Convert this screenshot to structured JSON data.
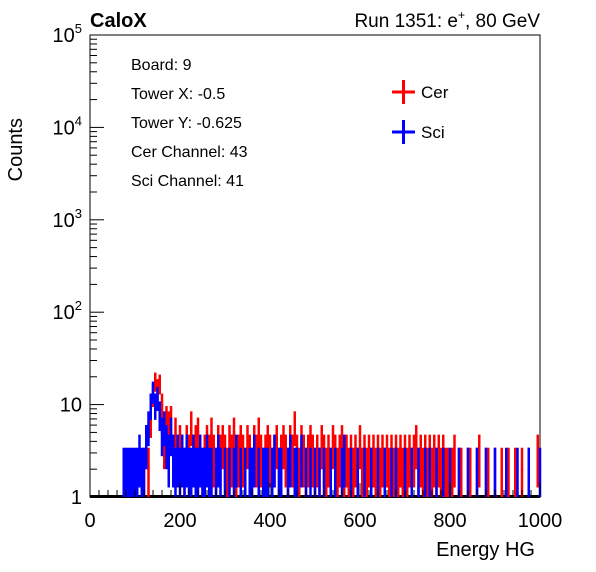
{
  "header": {
    "experiment": "CaloX",
    "run_label": "Run 1351: e",
    "run_sup": "+",
    "run_energy": ", 80 GeV"
  },
  "info": [
    "Board: 9",
    "Tower X: -0.5",
    "Tower Y: -0.625",
    "Cer Channel: 43",
    "Sci Channel: 41"
  ],
  "chart_data": {
    "type": "histogram",
    "xlabel": "Energy HG",
    "ylabel": "Counts",
    "xlim": [
      0,
      1000
    ],
    "ylim": [
      1,
      100000
    ],
    "ylog": true,
    "x_ticks": [
      "0",
      "200",
      "400",
      "600",
      "800",
      "1000"
    ],
    "y_ticks": [
      {
        "base": "1",
        "exp": ""
      },
      {
        "base": "10",
        "exp": ""
      },
      {
        "base": "10",
        "exp": "2"
      },
      {
        "base": "10",
        "exp": "3"
      },
      {
        "base": "10",
        "exp": "4"
      },
      {
        "base": "10",
        "exp": "5"
      }
    ],
    "legend_position": "top-right",
    "bin_width": 5,
    "series": [
      {
        "name": "Cer",
        "color": "#ff0000",
        "bins": [
          [
            120,
            2
          ],
          [
            125,
            4
          ],
          [
            130,
            2
          ],
          [
            135,
            7
          ],
          [
            140,
            13
          ],
          [
            145,
            18
          ],
          [
            150,
            15
          ],
          [
            155,
            17
          ],
          [
            160,
            10
          ],
          [
            165,
            4
          ],
          [
            170,
            7
          ],
          [
            175,
            6
          ],
          [
            180,
            7
          ],
          [
            185,
            3
          ],
          [
            190,
            5
          ],
          [
            195,
            3
          ],
          [
            200,
            4
          ],
          [
            205,
            3
          ],
          [
            210,
            2
          ],
          [
            215,
            4
          ],
          [
            220,
            3
          ],
          [
            225,
            6
          ],
          [
            230,
            3
          ],
          [
            235,
            4
          ],
          [
            240,
            5
          ],
          [
            245,
            3
          ],
          [
            250,
            2
          ],
          [
            255,
            3
          ],
          [
            260,
            4
          ],
          [
            265,
            3
          ],
          [
            270,
            5
          ],
          [
            275,
            3
          ],
          [
            280,
            2
          ],
          [
            285,
            4
          ],
          [
            290,
            3
          ],
          [
            295,
            4
          ],
          [
            300,
            3
          ],
          [
            305,
            2
          ],
          [
            310,
            4
          ],
          [
            315,
            3
          ],
          [
            320,
            5
          ],
          [
            325,
            2
          ],
          [
            330,
            3
          ],
          [
            335,
            4
          ],
          [
            340,
            3
          ],
          [
            345,
            2
          ],
          [
            350,
            4
          ],
          [
            355,
            3
          ],
          [
            360,
            2
          ],
          [
            365,
            4
          ],
          [
            370,
            3
          ],
          [
            375,
            5
          ],
          [
            380,
            3
          ],
          [
            385,
            2
          ],
          [
            390,
            3
          ],
          [
            395,
            4
          ],
          [
            400,
            3
          ],
          [
            405,
            2
          ],
          [
            410,
            3
          ],
          [
            415,
            4
          ],
          [
            420,
            2
          ],
          [
            425,
            3
          ],
          [
            430,
            4
          ],
          [
            435,
            3
          ],
          [
            440,
            2
          ],
          [
            445,
            4
          ],
          [
            450,
            3
          ],
          [
            455,
            6
          ],
          [
            460,
            3
          ],
          [
            465,
            2
          ],
          [
            470,
            4
          ],
          [
            475,
            3
          ],
          [
            480,
            2
          ],
          [
            485,
            3
          ],
          [
            490,
            4
          ],
          [
            495,
            3
          ],
          [
            500,
            2
          ],
          [
            505,
            3
          ],
          [
            510,
            2
          ],
          [
            515,
            4
          ],
          [
            520,
            3
          ],
          [
            525,
            2
          ],
          [
            530,
            3
          ],
          [
            535,
            2
          ],
          [
            540,
            4
          ],
          [
            545,
            3
          ],
          [
            550,
            2
          ],
          [
            555,
            3
          ],
          [
            560,
            4
          ],
          [
            565,
            2
          ],
          [
            570,
            3
          ],
          [
            575,
            2
          ],
          [
            580,
            3
          ],
          [
            585,
            2
          ],
          [
            590,
            3
          ],
          [
            595,
            2
          ],
          [
            600,
            4
          ],
          [
            605,
            2
          ],
          [
            610,
            3
          ],
          [
            615,
            2
          ],
          [
            620,
            3
          ],
          [
            625,
            2
          ],
          [
            630,
            3
          ],
          [
            635,
            2
          ],
          [
            640,
            3
          ],
          [
            645,
            2
          ],
          [
            650,
            3
          ],
          [
            655,
            2
          ],
          [
            660,
            3
          ],
          [
            665,
            2
          ],
          [
            670,
            3
          ],
          [
            675,
            2
          ],
          [
            680,
            3
          ],
          [
            685,
            2
          ],
          [
            690,
            3
          ],
          [
            695,
            2
          ],
          [
            700,
            3
          ],
          [
            705,
            2
          ],
          [
            710,
            3
          ],
          [
            715,
            2
          ],
          [
            720,
            3
          ],
          [
            725,
            4
          ],
          [
            730,
            2
          ],
          [
            735,
            3
          ],
          [
            740,
            2
          ],
          [
            745,
            3
          ],
          [
            750,
            2
          ],
          [
            755,
            3
          ],
          [
            760,
            2
          ],
          [
            765,
            3
          ],
          [
            770,
            2
          ],
          [
            775,
            3
          ],
          [
            780,
            2
          ],
          [
            785,
            3
          ],
          [
            790,
            2
          ],
          [
            795,
            2
          ],
          [
            805,
            2
          ],
          [
            810,
            3
          ],
          [
            820,
            2
          ],
          [
            825,
            2
          ],
          [
            840,
            2
          ],
          [
            845,
            2
          ],
          [
            860,
            2
          ],
          [
            865,
            3
          ],
          [
            880,
            2
          ],
          [
            885,
            2
          ],
          [
            900,
            2
          ],
          [
            915,
            2
          ],
          [
            930,
            2
          ],
          [
            945,
            2
          ],
          [
            960,
            2
          ],
          [
            975,
            2
          ],
          [
            995,
            3
          ]
        ]
      },
      {
        "name": "Sci",
        "color": "#0000ff",
        "bins": [
          [
            75,
            2
          ],
          [
            80,
            2
          ],
          [
            85,
            2
          ],
          [
            90,
            2
          ],
          [
            95,
            2
          ],
          [
            100,
            2
          ],
          [
            105,
            2
          ],
          [
            110,
            3
          ],
          [
            115,
            2
          ],
          [
            120,
            2
          ],
          [
            125,
            4
          ],
          [
            130,
            6
          ],
          [
            135,
            10
          ],
          [
            140,
            14
          ],
          [
            145,
            10
          ],
          [
            150,
            12
          ],
          [
            155,
            8
          ],
          [
            160,
            5
          ],
          [
            165,
            6
          ],
          [
            170,
            4
          ],
          [
            175,
            3
          ],
          [
            180,
            5
          ],
          [
            185,
            3
          ],
          [
            190,
            2
          ],
          [
            195,
            3
          ],
          [
            200,
            2
          ],
          [
            205,
            3
          ],
          [
            210,
            2
          ],
          [
            215,
            3
          ],
          [
            220,
            2
          ],
          [
            225,
            2
          ],
          [
            230,
            3
          ],
          [
            235,
            2
          ],
          [
            240,
            2
          ],
          [
            245,
            3
          ],
          [
            250,
            2
          ],
          [
            255,
            2
          ],
          [
            260,
            3
          ],
          [
            265,
            2
          ],
          [
            270,
            2
          ],
          [
            280,
            2
          ],
          [
            285,
            3
          ],
          [
            290,
            2
          ],
          [
            300,
            2
          ],
          [
            310,
            2
          ],
          [
            320,
            2
          ],
          [
            325,
            3
          ],
          [
            335,
            2
          ],
          [
            345,
            2
          ],
          [
            355,
            2
          ],
          [
            360,
            2
          ],
          [
            365,
            3
          ],
          [
            375,
            2
          ],
          [
            385,
            2
          ],
          [
            390,
            2
          ],
          [
            395,
            2
          ],
          [
            405,
            2
          ],
          [
            410,
            3
          ],
          [
            420,
            2
          ],
          [
            425,
            2
          ],
          [
            440,
            2
          ],
          [
            445,
            3
          ],
          [
            455,
            2
          ],
          [
            460,
            2
          ],
          [
            470,
            3
          ],
          [
            480,
            2
          ],
          [
            490,
            2
          ],
          [
            500,
            2
          ],
          [
            510,
            2
          ],
          [
            520,
            2
          ],
          [
            535,
            2
          ],
          [
            545,
            2
          ],
          [
            560,
            2
          ],
          [
            565,
            3
          ],
          [
            580,
            2
          ],
          [
            595,
            2
          ],
          [
            610,
            2
          ],
          [
            625,
            2
          ],
          [
            640,
            2
          ],
          [
            655,
            2
          ],
          [
            670,
            2
          ],
          [
            680,
            2
          ],
          [
            700,
            2
          ],
          [
            715,
            2
          ],
          [
            730,
            2
          ],
          [
            745,
            2
          ],
          [
            755,
            2
          ],
          [
            770,
            2
          ],
          [
            785,
            2
          ],
          [
            800,
            2
          ],
          [
            820,
            2
          ],
          [
            840,
            2
          ],
          [
            860,
            2
          ],
          [
            880,
            2
          ],
          [
            900,
            2
          ],
          [
            925,
            2
          ],
          [
            950,
            2
          ],
          [
            975,
            2
          ],
          [
            1000,
            2
          ]
        ]
      }
    ]
  }
}
